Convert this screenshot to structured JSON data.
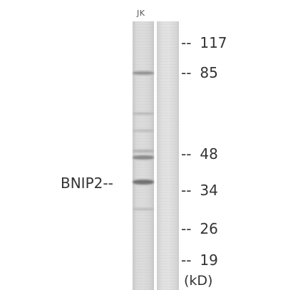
{
  "lane_label": "JK",
  "target_label": "BNIP2--",
  "markers": [
    {
      "value": "117"
    },
    {
      "value": "85"
    },
    {
      "value": "48"
    },
    {
      "value": "34"
    },
    {
      "value": "26"
    },
    {
      "value": "19"
    }
  ],
  "marker_dash": "--",
  "unit_label": "(kD)"
}
